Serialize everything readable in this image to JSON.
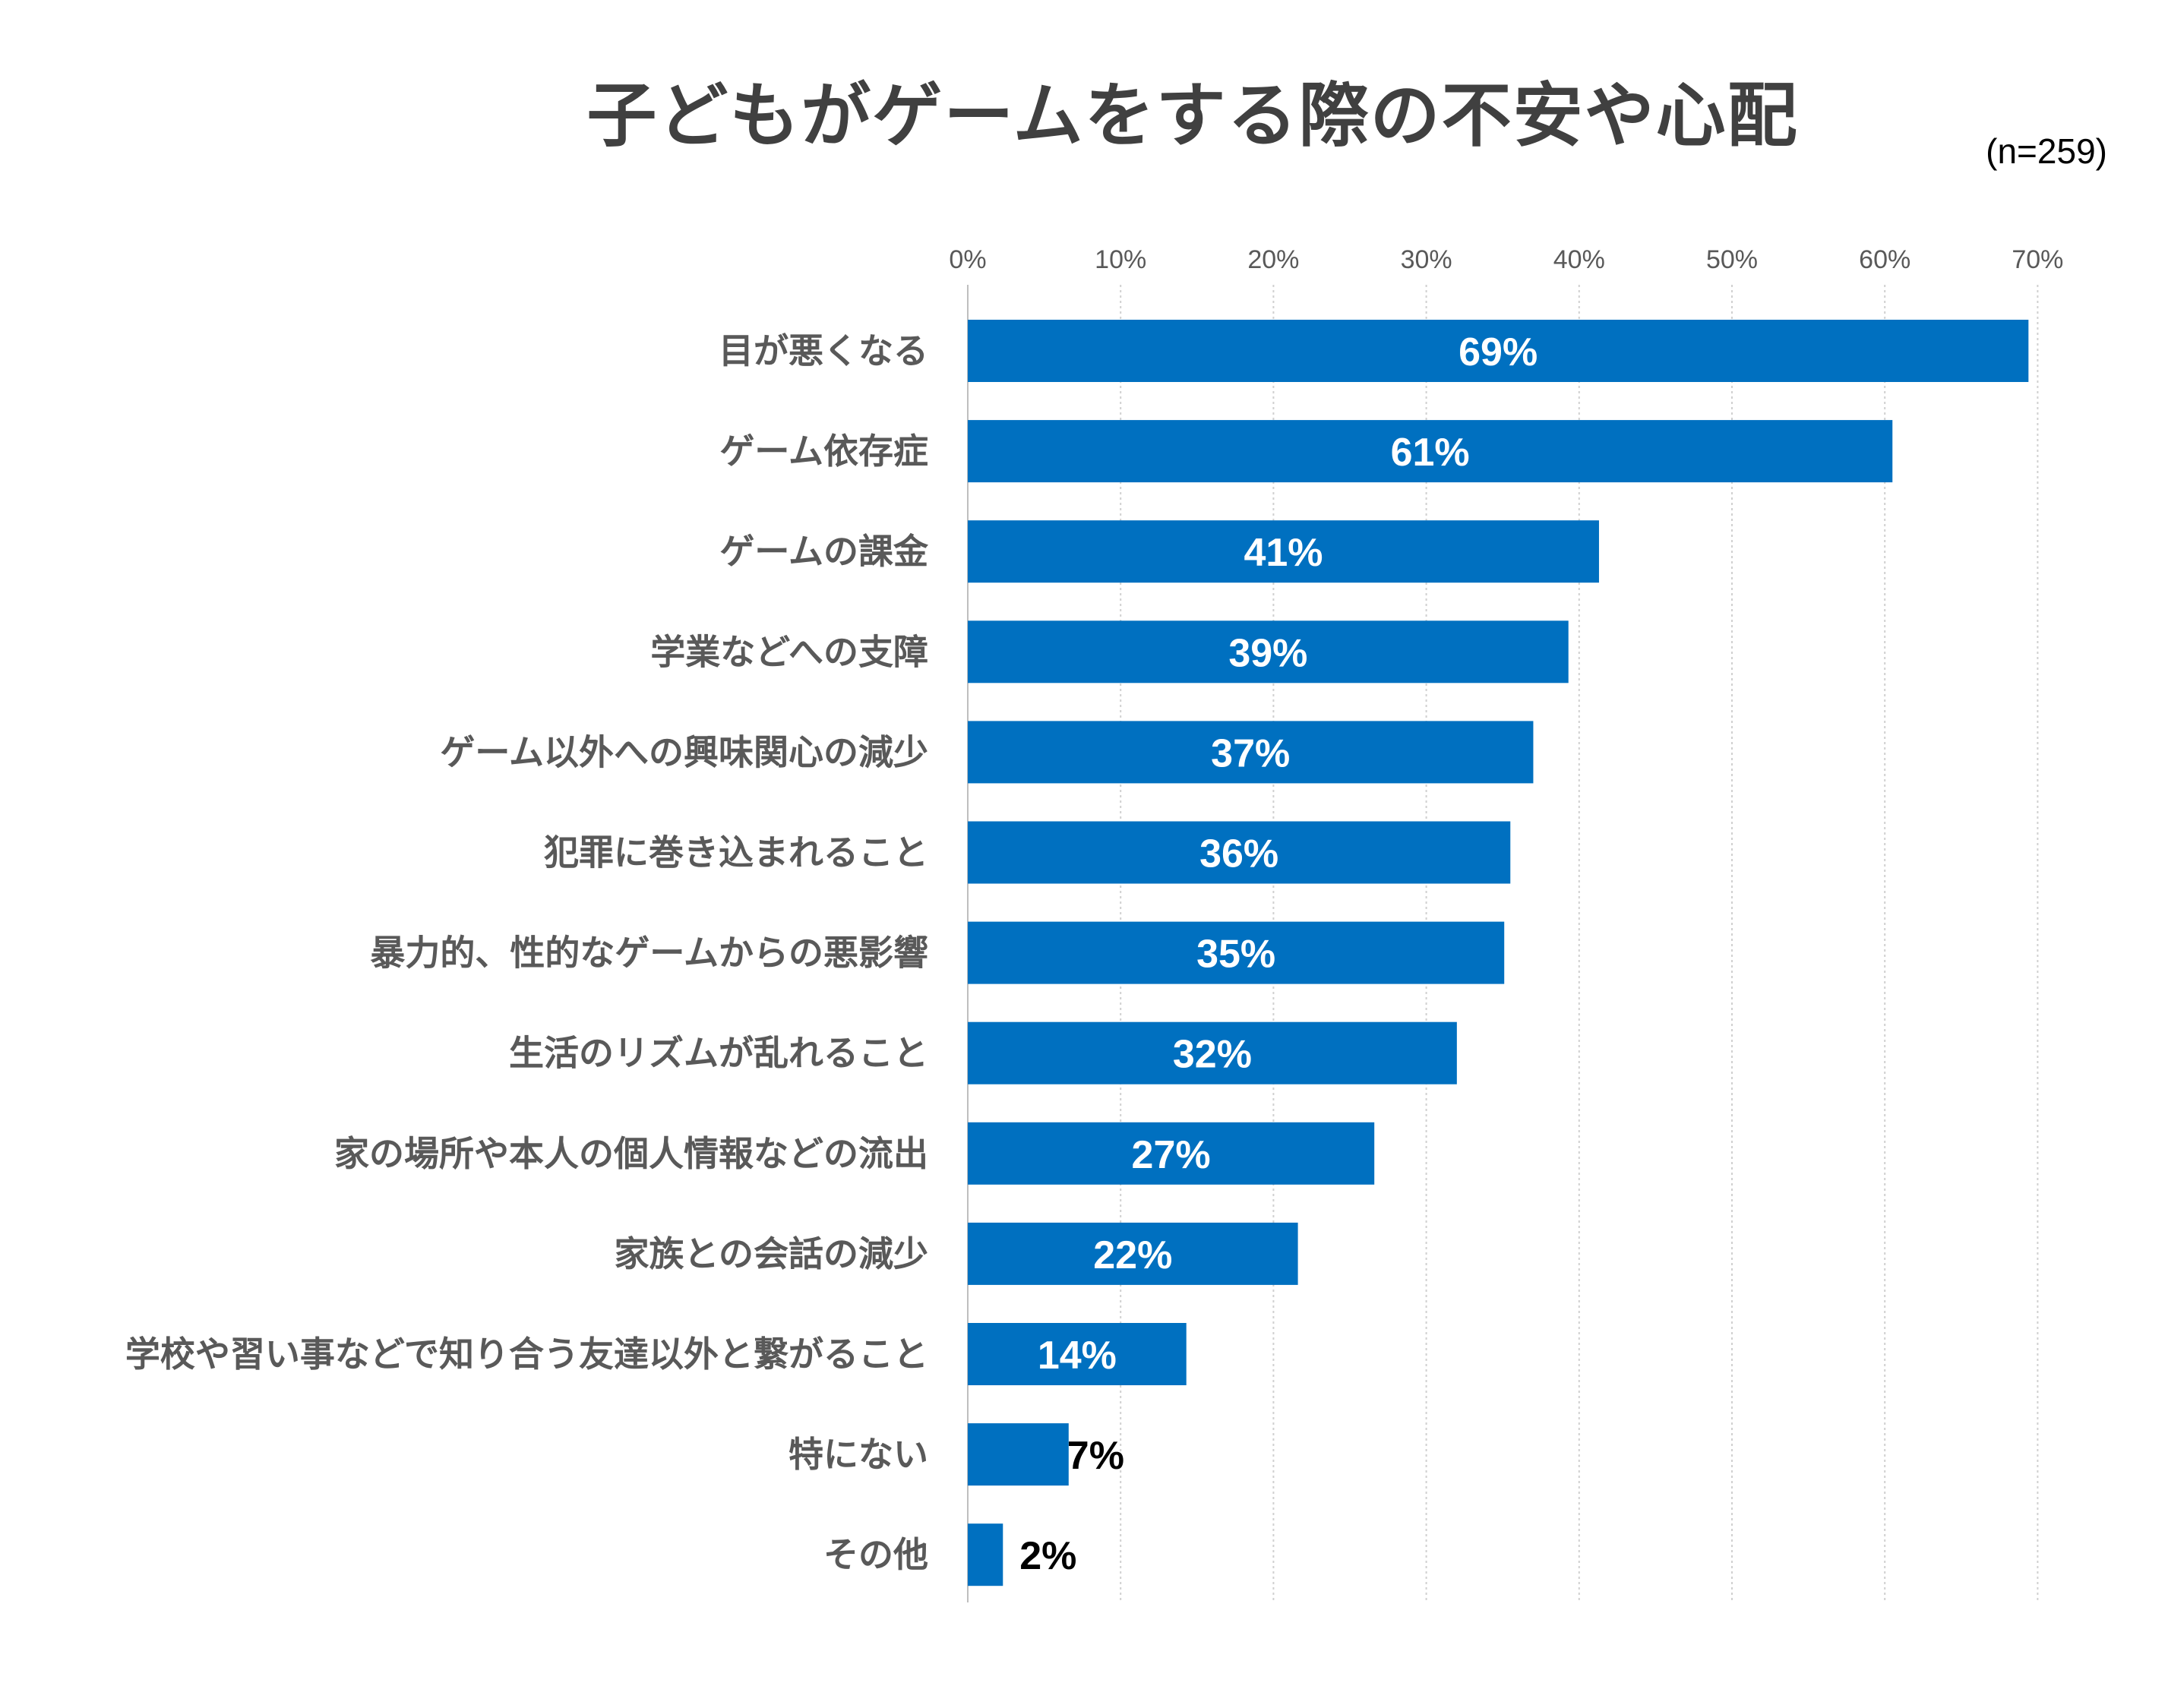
{
  "chart_data": {
    "type": "bar",
    "orientation": "horizontal",
    "title": "子どもがゲームをする際の不安や心配",
    "subtitle": "(n=259)",
    "categories": [
      "目が悪くなる",
      "ゲーム依存症",
      "ゲームの課金",
      "学業などへの支障",
      "ゲーム以外への興味関心の減少",
      "犯罪に巻き込まれること",
      "暴力的、性的なゲームからの悪影響",
      "生活のリズムが乱れること",
      "家の場所や本人の個人情報などの流出",
      "家族との会話の減少",
      "学校や習い事などで知り合う友達以外と繋がること",
      "特にない",
      "その他"
    ],
    "values": [
      69.4,
      60.5,
      41.3,
      39.3,
      37.0,
      35.5,
      35.1,
      32.0,
      26.6,
      21.6,
      14.3,
      6.6,
      2.3
    ],
    "data_labels": [
      "69%",
      "61%",
      "41%",
      "39%",
      "37%",
      "36%",
      "35%",
      "32%",
      "27%",
      "22%",
      "14%",
      "7%",
      "2%"
    ],
    "x_ticks": [
      "0%",
      "10%",
      "20%",
      "30%",
      "40%",
      "50%",
      "60%",
      "70%"
    ],
    "xlim": [
      0,
      70
    ],
    "xlabel": "",
    "ylabel": "",
    "grid": true,
    "bar_color": "#0070C0",
    "label_color_inside": "#FFFFFF",
    "label_color_outside": "#000000"
  }
}
